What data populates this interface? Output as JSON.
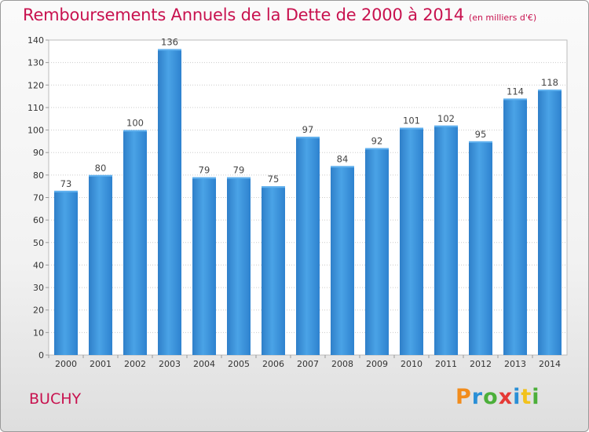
{
  "chart_data": {
    "type": "bar",
    "title": "Remboursements Annuels de la Dette de 2000 à 2014",
    "subtitle": "(en milliers d'€)",
    "xlabel": "",
    "ylabel": "",
    "categories": [
      "2000",
      "2001",
      "2002",
      "2003",
      "2004",
      "2005",
      "2006",
      "2007",
      "2008",
      "2009",
      "2010",
      "2011",
      "2012",
      "2013",
      "2014"
    ],
    "values": [
      73,
      80,
      100,
      136,
      79,
      79,
      75,
      97,
      84,
      92,
      101,
      102,
      95,
      114,
      118
    ],
    "ylim": [
      0,
      140
    ],
    "yticks": [
      0,
      10,
      20,
      30,
      40,
      50,
      60,
      70,
      80,
      90,
      100,
      110,
      120,
      130,
      140
    ],
    "grid": true,
    "legend": "none",
    "bar_color": "#3a8fd8",
    "bar_color_light": "#5fb0ee"
  },
  "footer": {
    "place": "BUCHY",
    "logo_text": "Proxiti",
    "logo_colors": [
      "#f28c1c",
      "#2a8fd6",
      "#4caf3a",
      "#e53935",
      "#2a8fd6",
      "#f2c21c",
      "#4caf3a"
    ]
  },
  "colors": {
    "title": "#c8124f",
    "grid": "#cccccc",
    "plot_bg": "#ffffff"
  }
}
